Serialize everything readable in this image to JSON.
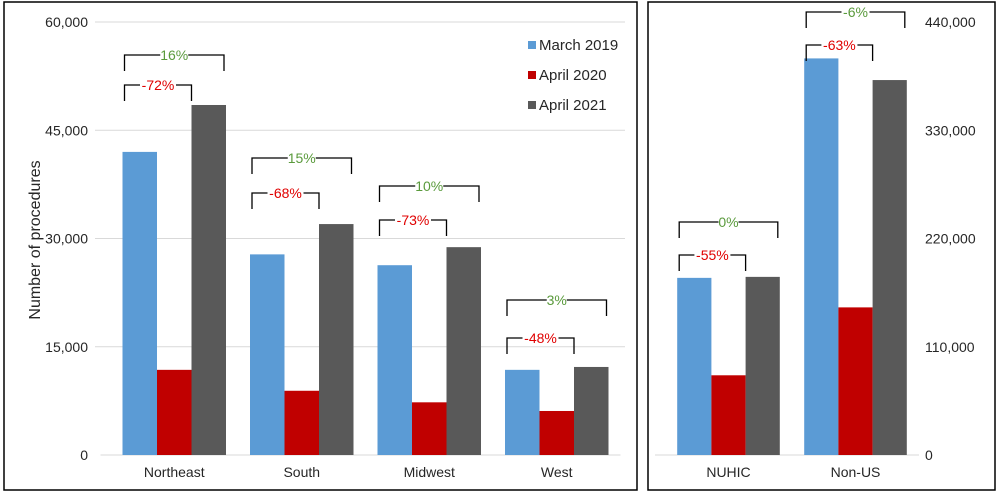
{
  "chart_data": [
    {
      "type": "bar",
      "ylabel": "Number of procedures",
      "ylim": [
        0,
        60000
      ],
      "yticks": [
        "0",
        "15,000",
        "30,000",
        "45,000",
        "60,000"
      ],
      "ytick_values": [
        0,
        15000,
        30000,
        45000,
        60000
      ],
      "grid": true,
      "legend": "top-right",
      "categories": [
        "Northeast",
        "South",
        "Midwest",
        "West"
      ],
      "series": [
        {
          "name": "March 2019",
          "color": "#5b9bd5",
          "values": [
            42000,
            27800,
            26300,
            11800
          ]
        },
        {
          "name": "April 2020",
          "color": "#c00000",
          "values": [
            11800,
            8900,
            7300,
            6100
          ]
        },
        {
          "name": "April 2021",
          "color": "#595959",
          "values": [
            48500,
            32000,
            28800,
            12200
          ]
        }
      ],
      "annotations": {
        "april2020_vs_march2019": [
          "-72%",
          "-68%",
          "-73%",
          "-48%"
        ],
        "april2021_vs_march2019": [
          "16%",
          "15%",
          "10%",
          "3%"
        ]
      }
    },
    {
      "type": "bar",
      "ylim": [
        0,
        440000
      ],
      "yticks": [
        "0",
        "110,000",
        "220,000",
        "330,000",
        "440,000"
      ],
      "ytick_values": [
        0,
        110000,
        220000,
        330000,
        440000
      ],
      "grid": false,
      "yaxis_side": "right",
      "categories": [
        "NUHIC",
        "Non-US"
      ],
      "series": [
        {
          "name": "March 2019",
          "color": "#5b9bd5",
          "values": [
            180000,
            403000
          ]
        },
        {
          "name": "April 2020",
          "color": "#c00000",
          "values": [
            81000,
            150000
          ]
        },
        {
          "name": "April 2021",
          "color": "#595959",
          "values": [
            181000,
            381000
          ]
        }
      ],
      "annotations": {
        "april2020_vs_march2019": [
          "-55%",
          "-63%"
        ],
        "april2021_vs_march2019": [
          "0%",
          "-6%"
        ]
      }
    }
  ],
  "colors": {
    "decline": "#e00000",
    "change2021": "#5a9a3c"
  }
}
